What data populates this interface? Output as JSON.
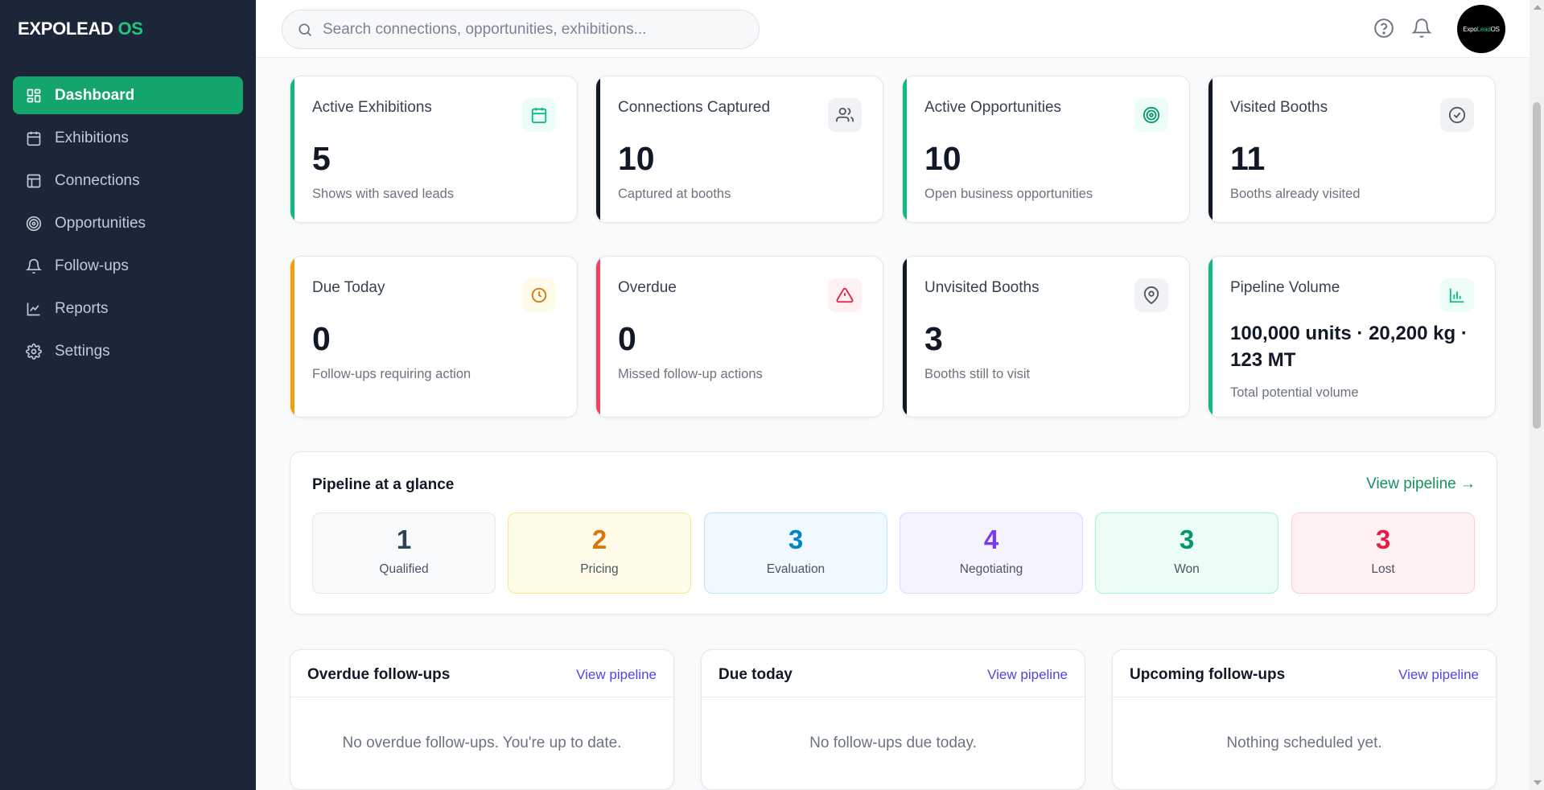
{
  "brand": {
    "name": "EXPOLEAD",
    "accent": "OS"
  },
  "sidebar": {
    "items": [
      {
        "label": "Dashboard",
        "icon": "dashboard-icon",
        "active": true
      },
      {
        "label": "Exhibitions",
        "icon": "calendar-icon"
      },
      {
        "label": "Connections",
        "icon": "table-icon"
      },
      {
        "label": "Opportunities",
        "icon": "target-icon"
      },
      {
        "label": "Follow-ups",
        "icon": "bell-icon"
      },
      {
        "label": "Reports",
        "icon": "line-chart-icon"
      },
      {
        "label": "Settings",
        "icon": "gear-icon"
      }
    ]
  },
  "topbar": {
    "search_placeholder": "Search connections, opportunities, exhibitions...",
    "avatar": {
      "part1": "Expo",
      "part2": "Lead",
      "part3": " OS"
    }
  },
  "stats": [
    {
      "title": "Active Exhibitions",
      "value": "5",
      "sub": "Shows with saved leads",
      "accent": "#10b981",
      "icon": "calendar-icon"
    },
    {
      "title": "Connections Captured",
      "value": "10",
      "sub": "Captured at booths",
      "accent": "#111827",
      "icon": "users-icon"
    },
    {
      "title": "Active Opportunities",
      "value": "10",
      "sub": "Open business opportunities",
      "accent": "#10b981",
      "icon": "target-icon"
    },
    {
      "title": "Visited Booths",
      "value": "11",
      "sub": "Booths already visited",
      "accent": "#111827",
      "icon": "check-circle-icon"
    },
    {
      "title": "Due Today",
      "value": "0",
      "sub": "Follow-ups requiring action",
      "accent": "#f59e0b",
      "icon": "clock-icon"
    },
    {
      "title": "Overdue",
      "value": "0",
      "sub": "Missed follow-up actions",
      "accent": "#f43f5e",
      "icon": "alert-icon"
    },
    {
      "title": "Unvisited Booths",
      "value": "3",
      "sub": "Booths still to visit",
      "accent": "#111827",
      "icon": "map-pin-icon"
    },
    {
      "title": "Pipeline Volume",
      "value": "100,000 units · 20,200 kg · 123 MT",
      "sub": "Total potential volume",
      "accent": "#10b981",
      "icon": "bar-chart-icon"
    }
  ],
  "pipeline": {
    "title": "Pipeline at a glance",
    "link": "View pipeline →",
    "stages": [
      {
        "count": "1",
        "label": "Qualified",
        "color": "#334155"
      },
      {
        "count": "2",
        "label": "Pricing",
        "color": "#d97706"
      },
      {
        "count": "3",
        "label": "Evaluation",
        "color": "#0284c7"
      },
      {
        "count": "4",
        "label": "Negotiating",
        "color": "#7c3aed"
      },
      {
        "count": "3",
        "label": "Won",
        "color": "#059669"
      },
      {
        "count": "3",
        "label": "Lost",
        "color": "#e11d48"
      }
    ]
  },
  "followups": [
    {
      "title": "Overdue follow-ups",
      "link": "View pipeline",
      "empty": "No overdue follow-ups. You're up to date."
    },
    {
      "title": "Due today",
      "link": "View pipeline",
      "empty": "No follow-ups due today."
    },
    {
      "title": "Upcoming follow-ups",
      "link": "View pipeline",
      "empty": "Nothing scheduled yet."
    }
  ]
}
